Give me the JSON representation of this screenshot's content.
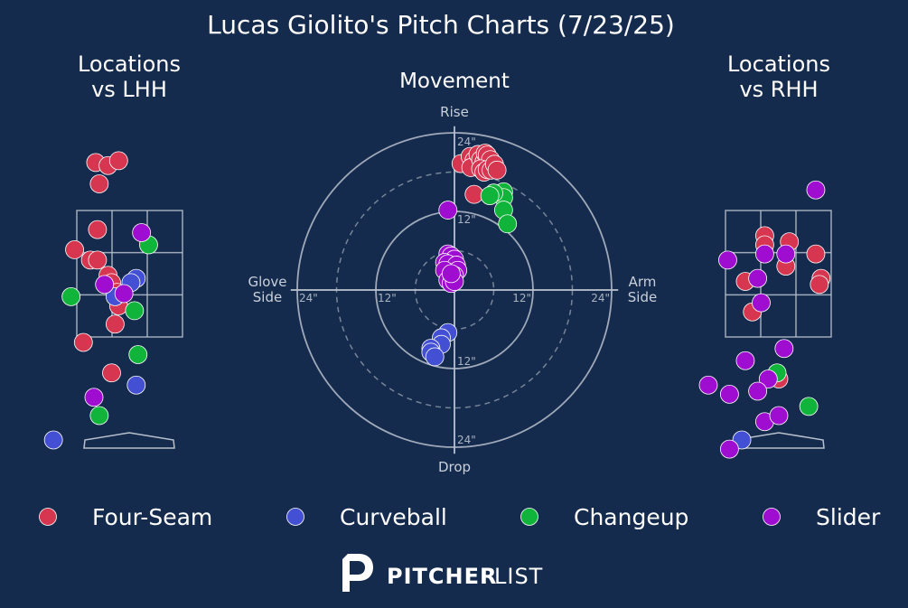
{
  "title": "Lucas Giolito's Pitch Charts (7/23/25)",
  "brand": {
    "name_bold": "PITCHER",
    "name_light": "LIST"
  },
  "colors": {
    "background": "#152b4d",
    "grid": "#b7c0cc",
    "Four-Seam": "#d6364f",
    "Curveball": "#4450d4",
    "Changeup": "#10b43a",
    "Slider": "#9e0dd0"
  },
  "legend": [
    "Four-Seam",
    "Curveball",
    "Changeup",
    "Slider"
  ],
  "chart_data": [
    {
      "type": "scatter",
      "title": "Locations\nvs LHH",
      "points": [
        {
          "pitch": "Four-Seam",
          "x": -0.95,
          "z": 4.55
        },
        {
          "pitch": "Four-Seam",
          "x": -0.6,
          "z": 4.5
        },
        {
          "pitch": "Four-Seam",
          "x": -0.3,
          "z": 4.58
        },
        {
          "pitch": "Four-Seam",
          "x": -0.85,
          "z": 4.2
        },
        {
          "pitch": "Four-Seam",
          "x": -0.9,
          "z": 3.45
        },
        {
          "pitch": "Four-Seam",
          "x": -1.55,
          "z": 3.12
        },
        {
          "pitch": "Four-Seam",
          "x": -1.1,
          "z": 2.95
        },
        {
          "pitch": "Four-Seam",
          "x": -0.9,
          "z": 2.95
        },
        {
          "pitch": "Four-Seam",
          "x": -0.6,
          "z": 2.7
        },
        {
          "pitch": "Four-Seam",
          "x": -0.5,
          "z": 2.58
        },
        {
          "pitch": "Four-Seam",
          "x": -0.35,
          "z": 2.42
        },
        {
          "pitch": "Four-Seam",
          "x": -0.3,
          "z": 2.2
        },
        {
          "pitch": "Four-Seam",
          "x": -0.4,
          "z": 1.9
        },
        {
          "pitch": "Four-Seam",
          "x": -1.3,
          "z": 1.6
        },
        {
          "pitch": "Four-Seam",
          "x": -0.5,
          "z": 1.1
        },
        {
          "pitch": "Curveball",
          "x": 0.2,
          "z": 2.65
        },
        {
          "pitch": "Curveball",
          "x": 0.05,
          "z": 2.58
        },
        {
          "pitch": "Curveball",
          "x": -0.4,
          "z": 2.35
        },
        {
          "pitch": "Curveball",
          "x": 0.2,
          "z": 0.9
        },
        {
          "pitch": "Curveball",
          "x": -2.15,
          "z": 0.0
        },
        {
          "pitch": "Changeup",
          "x": 0.55,
          "z": 3.2
        },
        {
          "pitch": "Changeup",
          "x": -1.65,
          "z": 2.35
        },
        {
          "pitch": "Changeup",
          "x": 0.15,
          "z": 2.12
        },
        {
          "pitch": "Changeup",
          "x": 0.25,
          "z": 1.4
        },
        {
          "pitch": "Changeup",
          "x": -0.85,
          "z": 0.4
        },
        {
          "pitch": "Slider",
          "x": 0.35,
          "z": 3.4
        },
        {
          "pitch": "Slider",
          "x": -0.7,
          "z": 2.55
        },
        {
          "pitch": "Slider",
          "x": -0.15,
          "z": 2.4
        },
        {
          "pitch": "Slider",
          "x": -1.0,
          "z": 0.7
        }
      ]
    },
    {
      "type": "scatter",
      "title": "Movement",
      "axis_labels": {
        "top": "Rise",
        "bottom": "Drop",
        "left": "Glove\nSide",
        "right": "Arm\nSide"
      },
      "ring_labels": [
        "12\"",
        "24\""
      ],
      "units": "inches",
      "points": [
        {
          "pitch": "Four-Seam",
          "x": 1.0,
          "z": 19.3
        },
        {
          "pitch": "Four-Seam",
          "x": 2.4,
          "z": 20.4
        },
        {
          "pitch": "Four-Seam",
          "x": 3.0,
          "z": 19.8
        },
        {
          "pitch": "Four-Seam",
          "x": 2.5,
          "z": 18.7
        },
        {
          "pitch": "Four-Seam",
          "x": 3.6,
          "z": 20.7
        },
        {
          "pitch": "Four-Seam",
          "x": 4.0,
          "z": 19.9
        },
        {
          "pitch": "Four-Seam",
          "x": 4.5,
          "z": 19.5
        },
        {
          "pitch": "Four-Seam",
          "x": 4.7,
          "z": 20.9
        },
        {
          "pitch": "Four-Seam",
          "x": 5.0,
          "z": 20.6
        },
        {
          "pitch": "Four-Seam",
          "x": 5.5,
          "z": 19.9
        },
        {
          "pitch": "Four-Seam",
          "x": 4.0,
          "z": 18.5
        },
        {
          "pitch": "Four-Seam",
          "x": 4.5,
          "z": 18.0
        },
        {
          "pitch": "Four-Seam",
          "x": 5.0,
          "z": 18.4
        },
        {
          "pitch": "Four-Seam",
          "x": 5.6,
          "z": 18.3
        },
        {
          "pitch": "Four-Seam",
          "x": 6.1,
          "z": 19.2
        },
        {
          "pitch": "Four-Seam",
          "x": 6.5,
          "z": 18.3
        },
        {
          "pitch": "Four-Seam",
          "x": 3.0,
          "z": 14.6
        },
        {
          "pitch": "Changeup",
          "x": 7.5,
          "z": 15.0
        },
        {
          "pitch": "Changeup",
          "x": 7.5,
          "z": 14.1
        },
        {
          "pitch": "Changeup",
          "x": 7.5,
          "z": 12.2
        },
        {
          "pitch": "Changeup",
          "x": 8.1,
          "z": 10.1
        },
        {
          "pitch": "Changeup",
          "x": 6.0,
          "z": 14.8
        },
        {
          "pitch": "Changeup",
          "x": 5.4,
          "z": 14.4
        },
        {
          "pitch": "Slider",
          "x": -1.0,
          "z": 12.2
        },
        {
          "pitch": "Slider",
          "x": -1.0,
          "z": 5.5
        },
        {
          "pitch": "Slider",
          "x": -0.5,
          "z": 5.2
        },
        {
          "pitch": "Slider",
          "x": 0.0,
          "z": 4.7
        },
        {
          "pitch": "Slider",
          "x": -1.5,
          "z": 4.2
        },
        {
          "pitch": "Slider",
          "x": -1.0,
          "z": 4.0
        },
        {
          "pitch": "Slider",
          "x": 0.3,
          "z": 3.8
        },
        {
          "pitch": "Slider",
          "x": 0.5,
          "z": 3.0
        },
        {
          "pitch": "Slider",
          "x": -1.5,
          "z": 3.0
        },
        {
          "pitch": "Slider",
          "x": 0.0,
          "z": 2.2
        },
        {
          "pitch": "Slider",
          "x": -1.0,
          "z": 1.5
        },
        {
          "pitch": "Slider",
          "x": -0.5,
          "z": 1.0
        },
        {
          "pitch": "Slider",
          "x": 0.0,
          "z": 1.3
        },
        {
          "pitch": "Slider",
          "x": -0.5,
          "z": 2.5
        },
        {
          "pitch": "Curveball",
          "x": -1.0,
          "z": -6.5
        },
        {
          "pitch": "Curveball",
          "x": -2.0,
          "z": -7.3
        },
        {
          "pitch": "Curveball",
          "x": -2.0,
          "z": -8.3
        },
        {
          "pitch": "Curveball",
          "x": -3.6,
          "z": -8.9
        },
        {
          "pitch": "Curveball",
          "x": -3.6,
          "z": -9.5
        },
        {
          "pitch": "Curveball",
          "x": -3.0,
          "z": -10.2
        }
      ]
    },
    {
      "type": "scatter",
      "title": "Locations\nvs RHH",
      "points": [
        {
          "pitch": "Four-Seam",
          "x": -0.4,
          "z": 3.35
        },
        {
          "pitch": "Four-Seam",
          "x": -0.4,
          "z": 3.2
        },
        {
          "pitch": "Four-Seam",
          "x": 0.3,
          "z": 3.25
        },
        {
          "pitch": "Four-Seam",
          "x": 0.2,
          "z": 2.85
        },
        {
          "pitch": "Four-Seam",
          "x": 1.05,
          "z": 3.05
        },
        {
          "pitch": "Four-Seam",
          "x": 1.2,
          "z": 2.65
        },
        {
          "pitch": "Four-Seam",
          "x": 1.15,
          "z": 2.55
        },
        {
          "pitch": "Four-Seam",
          "x": -0.95,
          "z": 2.6
        },
        {
          "pitch": "Four-Seam",
          "x": -0.75,
          "z": 2.1
        },
        {
          "pitch": "Four-Seam",
          "x": 0.0,
          "z": 1.0
        },
        {
          "pitch": "Curveball",
          "x": -1.05,
          "z": 0.0
        },
        {
          "pitch": "Changeup",
          "x": -0.05,
          "z": 1.1
        },
        {
          "pitch": "Changeup",
          "x": 0.85,
          "z": 0.55
        },
        {
          "pitch": "Slider",
          "x": 1.05,
          "z": 4.1
        },
        {
          "pitch": "Slider",
          "x": -0.4,
          "z": 3.05
        },
        {
          "pitch": "Slider",
          "x": 0.2,
          "z": 3.05
        },
        {
          "pitch": "Slider",
          "x": -1.45,
          "z": 2.95
        },
        {
          "pitch": "Slider",
          "x": -0.6,
          "z": 2.65
        },
        {
          "pitch": "Slider",
          "x": -0.5,
          "z": 2.25
        },
        {
          "pitch": "Slider",
          "x": 0.15,
          "z": 1.5
        },
        {
          "pitch": "Slider",
          "x": -0.95,
          "z": 1.3
        },
        {
          "pitch": "Slider",
          "x": -0.3,
          "z": 1.0
        },
        {
          "pitch": "Slider",
          "x": -0.6,
          "z": 0.8
        },
        {
          "pitch": "Slider",
          "x": -2.0,
          "z": 0.9
        },
        {
          "pitch": "Slider",
          "x": -1.4,
          "z": 0.75
        },
        {
          "pitch": "Slider",
          "x": -0.4,
          "z": 0.3
        },
        {
          "pitch": "Slider",
          "x": 0.0,
          "z": 0.4
        },
        {
          "pitch": "Slider",
          "x": -1.4,
          "z": -0.15
        }
      ]
    }
  ]
}
